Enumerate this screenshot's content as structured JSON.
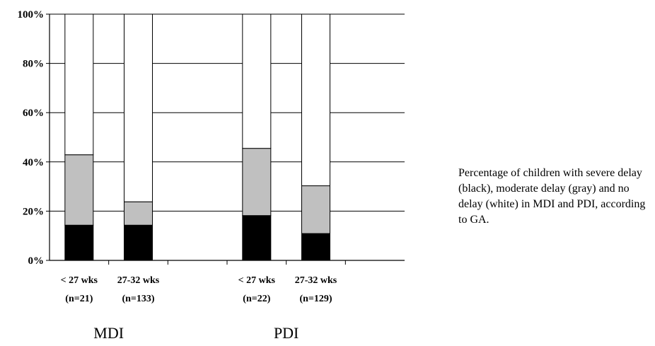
{
  "chart_data": {
    "type": "bar",
    "stacked": true,
    "categories": [
      {
        "label": "< 27 wks",
        "n": "(n=21)",
        "group": "MDI"
      },
      {
        "label": "27-32 wks",
        "n": "(n=133)",
        "group": "MDI"
      },
      {
        "label": "< 27 wks",
        "n": "(n=22)",
        "group": "PDI"
      },
      {
        "label": "27-32 wks",
        "n": "(n=129)",
        "group": "PDI"
      }
    ],
    "groups": [
      "MDI",
      "PDI"
    ],
    "series": [
      {
        "color": "#000000",
        "values": [
          14.3,
          14.3,
          18.2,
          10.9
        ]
      },
      {
        "color": "#c0c0c0",
        "values": [
          28.6,
          9.5,
          27.3,
          19.4
        ]
      },
      {
        "color": "#ffffff",
        "values": [
          57.1,
          76.2,
          54.5,
          69.7
        ]
      }
    ],
    "ylim": [
      0,
      100
    ],
    "yticks": [
      "0%",
      "20%",
      "40%",
      "60%",
      "80%",
      "100%"
    ],
    "grid": true
  },
  "caption": "Percentage of children with severe delay (black), moderate delay (gray) and no delay (white) in MDI and PDI, according to GA."
}
